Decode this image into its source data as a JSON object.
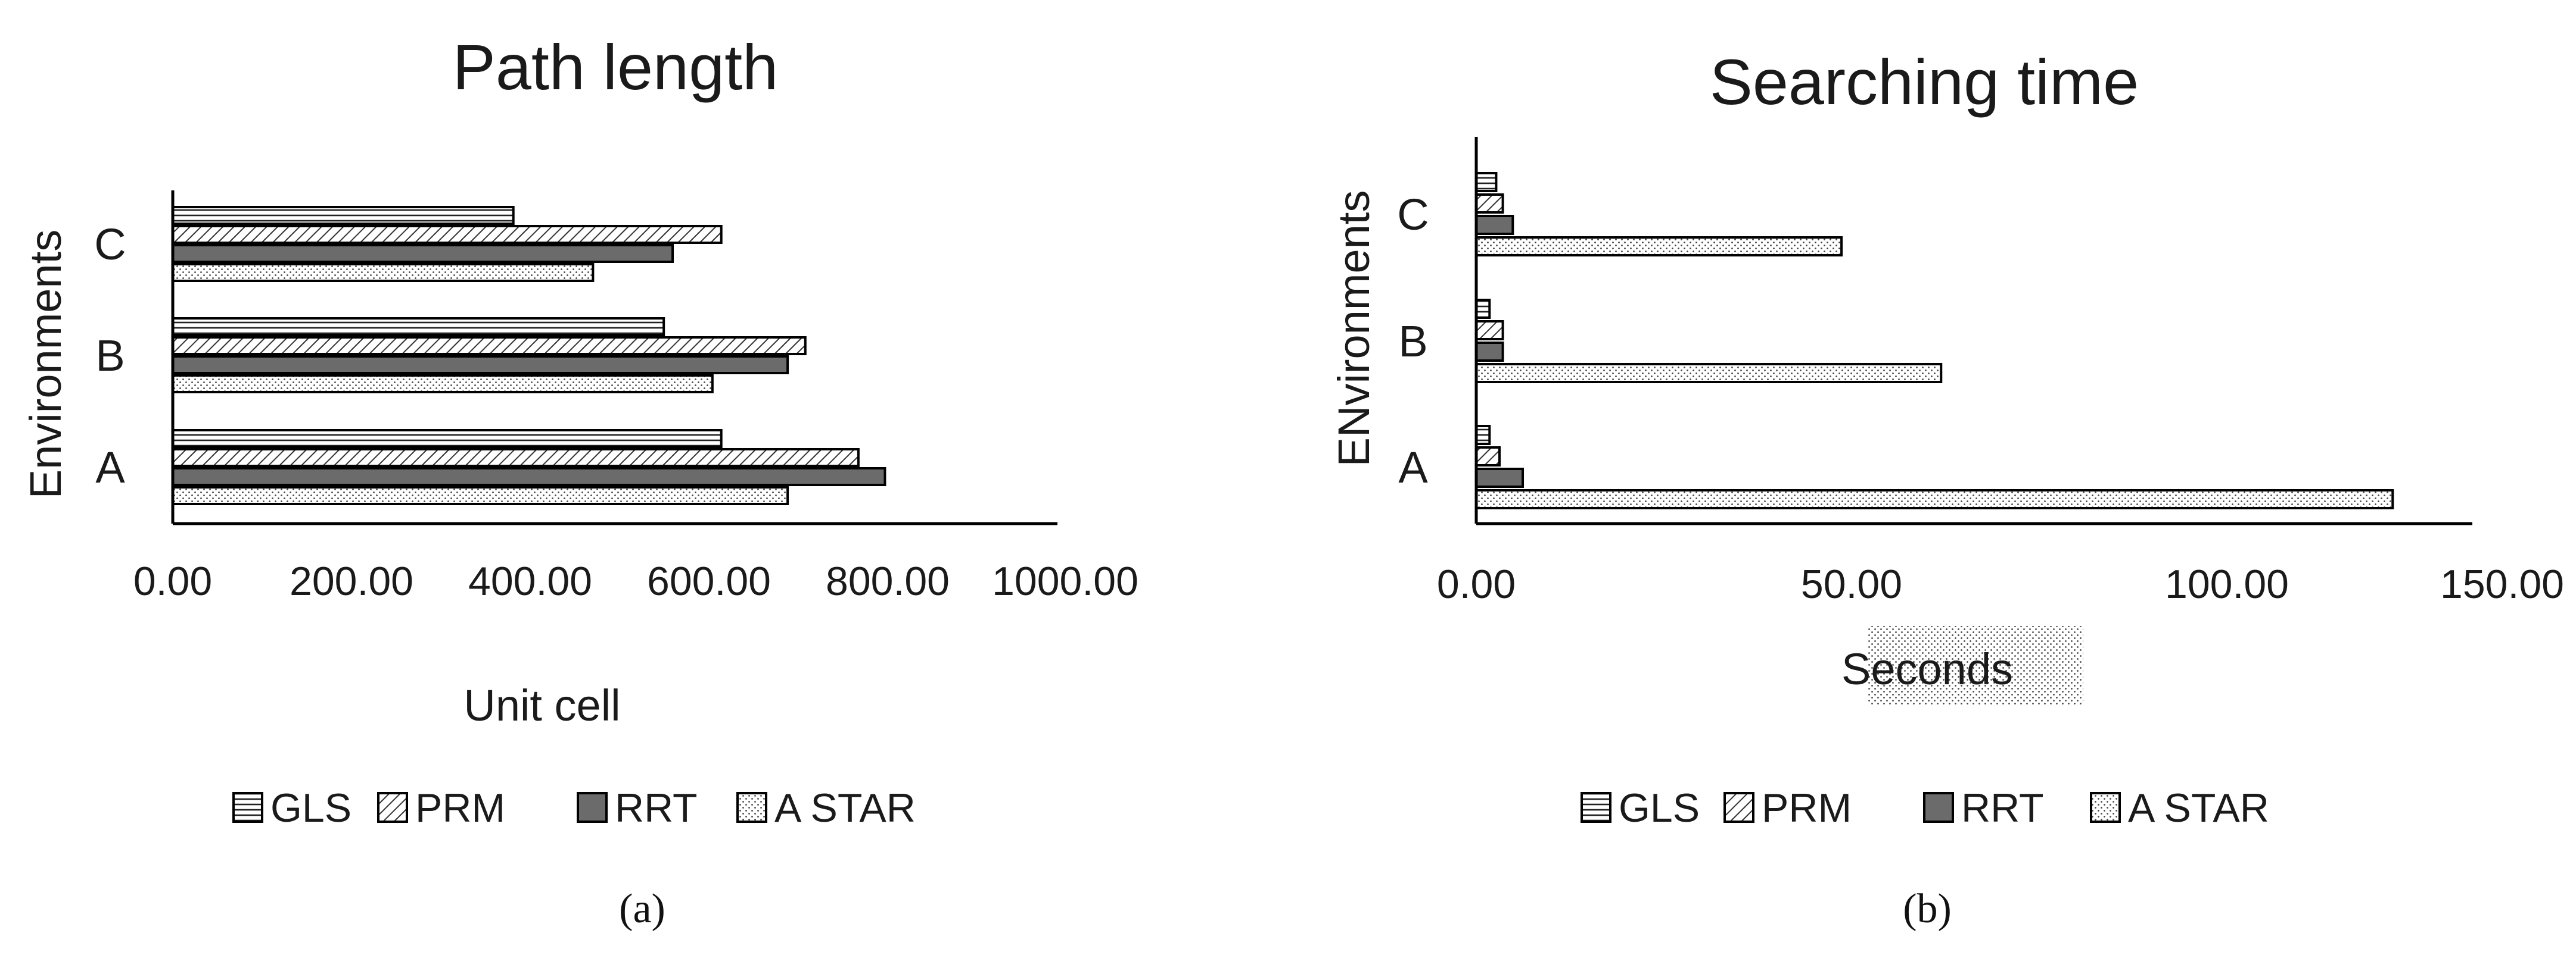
{
  "chart_data": [
    {
      "type": "bar",
      "orientation": "horizontal",
      "title": "Path length",
      "xlabel": "Unit cell",
      "ylabel": "Environments",
      "categories": [
        "A",
        "B",
        "C"
      ],
      "series": [
        {
          "name": "GLS",
          "values": [
            620,
            555,
            385
          ],
          "pattern": "hlines",
          "color": "#ffffff"
        },
        {
          "name": "PRM",
          "values": [
            775,
            715,
            620
          ],
          "pattern": "diag",
          "color": "#ffffff"
        },
        {
          "name": "RRT",
          "values": [
            805,
            695,
            565
          ],
          "pattern": "solid",
          "color": "#6b6b6b"
        },
        {
          "name": "A STAR",
          "values": [
            695,
            610,
            475
          ],
          "pattern": "dots",
          "color": "#ffffff"
        }
      ],
      "xlim": [
        0,
        1000
      ],
      "xticks": [
        "0.00",
        "200.00",
        "400.00",
        "600.00",
        "800.00",
        "1000.00"
      ],
      "grid": false,
      "legend": "bottom",
      "caption": "(a)"
    },
    {
      "type": "bar",
      "orientation": "horizontal",
      "title": "Searching time",
      "xlabel": "Seconds",
      "ylabel": "ENvironments",
      "categories": [
        "A",
        "B",
        "C"
      ],
      "series": [
        {
          "name": "GLS",
          "values": [
            2,
            2,
            3
          ],
          "pattern": "hlines",
          "color": "#ffffff"
        },
        {
          "name": "PRM",
          "values": [
            3.5,
            4,
            4
          ],
          "pattern": "diag",
          "color": "#ffffff"
        },
        {
          "name": "RRT",
          "values": [
            7,
            4,
            5.5
          ],
          "pattern": "solid",
          "color": "#6b6b6b"
        },
        {
          "name": "A STAR",
          "values": [
            138,
            70,
            55
          ],
          "pattern": "dots",
          "color": "#ffffff"
        }
      ],
      "xlim": [
        0,
        150
      ],
      "xticks": [
        "0.00",
        "50.00",
        "100.00",
        "150.00"
      ],
      "grid": false,
      "legend": "bottom",
      "caption": "(b)"
    }
  ]
}
